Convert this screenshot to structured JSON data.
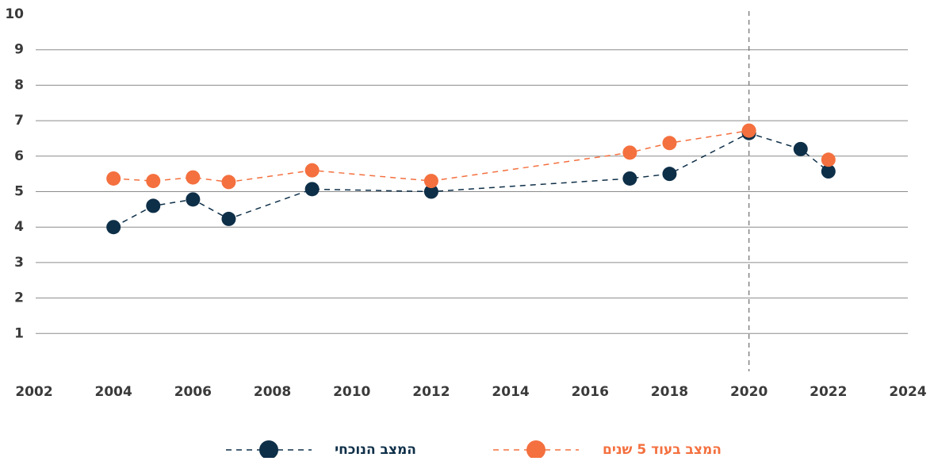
{
  "chart_data": {
    "type": "line",
    "x": [
      2004,
      2005,
      2006,
      2006.9,
      2009,
      2012,
      2017,
      2018,
      2020,
      2021.3,
      2022
    ],
    "series": [
      {
        "name": "המצב הנוכחי",
        "color": "#0e2f48",
        "values": [
          4.0,
          4.6,
          4.78,
          4.23,
          5.07,
          5.0,
          5.37,
          5.5,
          6.65,
          6.2,
          5.57
        ]
      },
      {
        "name": "המצב בעוד 5 שנים",
        "color": "#f4703f",
        "values": [
          5.37,
          5.3,
          5.4,
          5.27,
          5.6,
          5.3,
          6.1,
          6.37,
          6.72,
          null,
          5.9
        ]
      }
    ],
    "xlim": [
      2002,
      2024
    ],
    "xticks": [
      2002,
      2004,
      2006,
      2008,
      2010,
      2012,
      2014,
      2016,
      2018,
      2020,
      2022,
      2024
    ],
    "ylim": [
      0,
      10
    ],
    "yticks": [
      1,
      2,
      3,
      4,
      5,
      6,
      7,
      8,
      9,
      10
    ],
    "grid": true,
    "vertical_line": 2020,
    "legend": "bottom"
  }
}
